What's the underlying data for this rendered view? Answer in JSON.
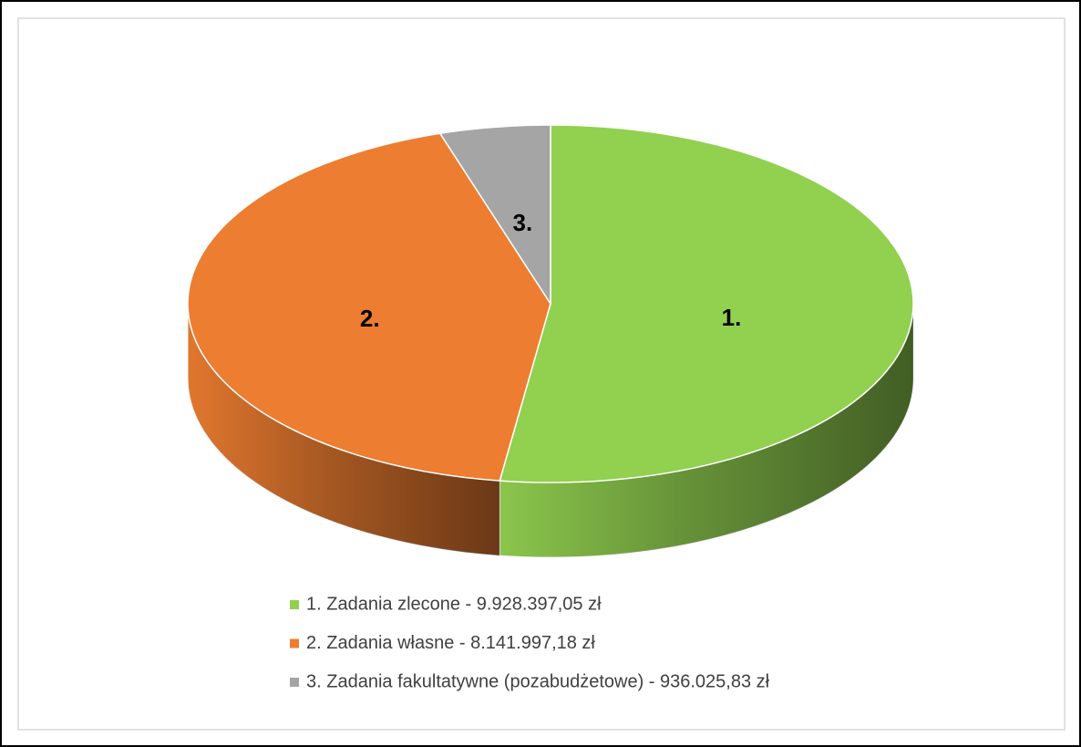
{
  "chart_data": {
    "type": "pie",
    "categories": [
      "1. Zadania zlecone - 9.928.397,05 zł",
      "2. Zadania własne - 8.141.997,18 zł",
      "3. Zadania fakultatywne (pozabudżetowe) - 936.025,83 zł"
    ],
    "values": [
      9928397.05,
      8141997.18,
      936025.83
    ],
    "value_labels": [
      "1.",
      "2.",
      "3."
    ],
    "colors": [
      "#92d050",
      "#ed7d31",
      "#a5a5a5"
    ]
  }
}
